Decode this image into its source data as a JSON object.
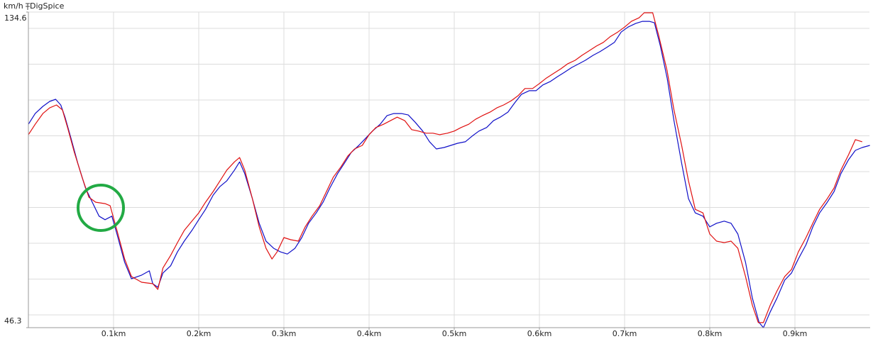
{
  "chart_data": {
    "type": "line",
    "unit_label": "km/h",
    "source_label": "DigSpice",
    "xlim": [
      0,
      0.9875
    ],
    "ylim": [
      46.3,
      134.6
    ],
    "xticks": [
      {
        "value": 0.1,
        "label": "0.1km"
      },
      {
        "value": 0.2,
        "label": "0.2km"
      },
      {
        "value": 0.3,
        "label": "0.3km"
      },
      {
        "value": 0.4,
        "label": "0.4km"
      },
      {
        "value": 0.5,
        "label": "0.5km"
      },
      {
        "value": 0.6,
        "label": "0.6km"
      },
      {
        "value": 0.7,
        "label": "0.7km"
      },
      {
        "value": 0.8,
        "label": "0.8km"
      },
      {
        "value": 0.9,
        "label": "0.9km"
      }
    ],
    "yticks": [
      46.3,
      134.6
    ],
    "grid": true,
    "series": [
      {
        "color": "#1010c8",
        "x": [
          0,
          0.008,
          0.017,
          0.025,
          0.032,
          0.038,
          0.043,
          0.05,
          0.058,
          0.067,
          0.075,
          0.083,
          0.09,
          0.098,
          0.104,
          0.113,
          0.121,
          0.133,
          0.142,
          0.146,
          0.152,
          0.158,
          0.167,
          0.175,
          0.183,
          0.192,
          0.2,
          0.208,
          0.217,
          0.225,
          0.233,
          0.242,
          0.248,
          0.254,
          0.263,
          0.271,
          0.279,
          0.288,
          0.296,
          0.304,
          0.313,
          0.321,
          0.329,
          0.338,
          0.346,
          0.354,
          0.363,
          0.371,
          0.379,
          0.388,
          0.396,
          0.404,
          0.413,
          0.421,
          0.429,
          0.438,
          0.446,
          0.454,
          0.463,
          0.471,
          0.479,
          0.488,
          0.496,
          0.504,
          0.513,
          0.521,
          0.529,
          0.538,
          0.546,
          0.554,
          0.563,
          0.571,
          0.579,
          0.588,
          0.596,
          0.604,
          0.613,
          0.621,
          0.629,
          0.638,
          0.646,
          0.654,
          0.663,
          0.671,
          0.679,
          0.688,
          0.696,
          0.704,
          0.713,
          0.721,
          0.729,
          0.735,
          0.742,
          0.75,
          0.758,
          0.767,
          0.775,
          0.783,
          0.792,
          0.8,
          0.808,
          0.817,
          0.825,
          0.833,
          0.842,
          0.85,
          0.858,
          0.863,
          0.871,
          0.879,
          0.888,
          0.896,
          0.904,
          0.913,
          0.921,
          0.929,
          0.938,
          0.946,
          0.954,
          0.963,
          0.971,
          0.979,
          0.988
        ],
        "values": [
          103.2,
          106.2,
          108.2,
          109.6,
          110.2,
          108.6,
          105.2,
          99.3,
          92.3,
          85.4,
          81.4,
          77.5,
          76.5,
          77.5,
          72.5,
          64.6,
          60.0,
          61.0,
          62.2,
          58.6,
          57.6,
          61.6,
          63.6,
          67.5,
          70.5,
          73.5,
          76.5,
          79.4,
          83.4,
          85.8,
          87.4,
          90.4,
          92.7,
          89.4,
          82.4,
          75.5,
          70.5,
          68.5,
          67.5,
          66.9,
          68.5,
          71.5,
          75.5,
          78.4,
          81.4,
          85.4,
          89.4,
          92.3,
          95.3,
          97.3,
          99.3,
          101.3,
          103.2,
          105.6,
          106.2,
          106.2,
          105.8,
          103.8,
          101.3,
          98.3,
          96.3,
          96.7,
          97.3,
          97.9,
          98.3,
          99.9,
          101.3,
          102.3,
          104.2,
          105.2,
          106.6,
          109.2,
          111.6,
          112.6,
          112.6,
          114.2,
          115.2,
          116.5,
          117.7,
          119.1,
          120.1,
          121.1,
          122.5,
          123.5,
          124.7,
          126.1,
          129.0,
          130.4,
          131.4,
          132.0,
          132.0,
          131.6,
          125.1,
          116.1,
          104.2,
          92.3,
          82.4,
          78.4,
          77.5,
          74.5,
          75.5,
          76.1,
          75.5,
          72.5,
          64.6,
          54.6,
          47.7,
          46.3,
          50.7,
          54.6,
          59.6,
          61.6,
          65.5,
          69.5,
          74.5,
          78.4,
          81.4,
          84.4,
          89.4,
          93.3,
          95.9,
          96.7,
          97.3
        ]
      },
      {
        "color": "#e01010",
        "x": [
          0,
          0.008,
          0.017,
          0.025,
          0.033,
          0.04,
          0.046,
          0.054,
          0.063,
          0.071,
          0.079,
          0.09,
          0.096,
          0.104,
          0.113,
          0.121,
          0.133,
          0.146,
          0.152,
          0.158,
          0.167,
          0.175,
          0.183,
          0.192,
          0.2,
          0.208,
          0.217,
          0.225,
          0.233,
          0.242,
          0.248,
          0.254,
          0.263,
          0.271,
          0.279,
          0.286,
          0.292,
          0.3,
          0.308,
          0.317,
          0.325,
          0.333,
          0.342,
          0.35,
          0.358,
          0.367,
          0.375,
          0.383,
          0.392,
          0.4,
          0.408,
          0.417,
          0.425,
          0.433,
          0.442,
          0.45,
          0.458,
          0.467,
          0.475,
          0.483,
          0.492,
          0.5,
          0.508,
          0.517,
          0.525,
          0.533,
          0.542,
          0.55,
          0.558,
          0.567,
          0.575,
          0.583,
          0.592,
          0.6,
          0.608,
          0.617,
          0.625,
          0.633,
          0.642,
          0.65,
          0.658,
          0.667,
          0.675,
          0.683,
          0.692,
          0.7,
          0.708,
          0.717,
          0.723,
          0.733,
          0.74,
          0.75,
          0.758,
          0.767,
          0.775,
          0.783,
          0.792,
          0.8,
          0.808,
          0.817,
          0.825,
          0.833,
          0.842,
          0.85,
          0.857,
          0.863,
          0.871,
          0.879,
          0.888,
          0.896,
          0.904,
          0.913,
          0.921,
          0.929,
          0.938,
          0.946,
          0.954,
          0.963,
          0.971,
          0.979
        ],
        "values": [
          100.3,
          103.2,
          106.2,
          107.8,
          108.6,
          107.2,
          102.3,
          95.3,
          88.4,
          82.8,
          81.4,
          81.0,
          80.4,
          73.5,
          65.5,
          60.6,
          59.0,
          58.6,
          57.0,
          63.0,
          66.5,
          70.1,
          73.5,
          76.1,
          78.4,
          81.4,
          84.4,
          87.4,
          90.4,
          92.7,
          93.9,
          90.4,
          82.4,
          74.5,
          68.5,
          65.5,
          67.5,
          71.5,
          70.9,
          70.5,
          74.5,
          77.5,
          80.4,
          84.4,
          88.4,
          91.3,
          94.3,
          96.3,
          97.3,
          100.3,
          102.3,
          103.2,
          104.2,
          105.2,
          104.2,
          101.7,
          101.3,
          100.7,
          100.7,
          100.3,
          100.7,
          101.3,
          102.3,
          103.2,
          104.6,
          105.6,
          106.6,
          107.8,
          108.6,
          109.8,
          111.2,
          113.2,
          113.2,
          114.6,
          116.1,
          117.5,
          118.7,
          120.1,
          121.1,
          122.5,
          123.7,
          125.1,
          126.1,
          127.7,
          129.0,
          130.4,
          132.0,
          133.0,
          134.4,
          134.4,
          128.1,
          118.1,
          107.2,
          97.3,
          87.4,
          79.4,
          78.4,
          72.5,
          70.5,
          70.1,
          70.5,
          68.5,
          60.6,
          52.6,
          47.7,
          47.7,
          52.6,
          56.6,
          60.6,
          62.6,
          67.5,
          71.5,
          75.5,
          79.4,
          82.4,
          85.4,
          90.4,
          94.7,
          98.9,
          98.3
        ]
      }
    ]
  }
}
